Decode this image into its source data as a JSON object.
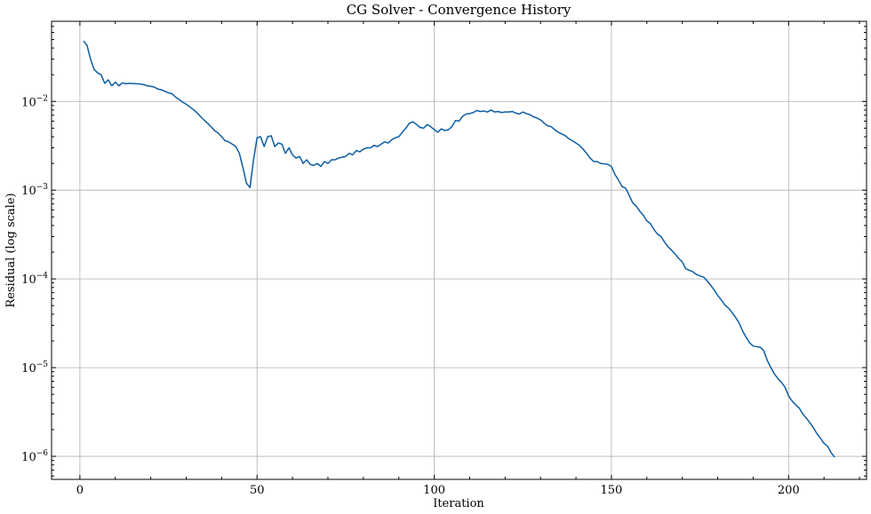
{
  "chart_data": {
    "type": "line",
    "title": "CG Solver - Convergence History",
    "xlabel": "Iteration",
    "ylabel": "Residual (log scale)",
    "xlim": [
      -8,
      222
    ],
    "ylim": [
      5.5e-07,
      0.08
    ],
    "yscale": "log",
    "grid": true,
    "xticks": [
      0,
      50,
      100,
      150,
      200
    ],
    "yticks": [
      {
        "value": 0.01,
        "mantissa": "10",
        "exp": "−2"
      },
      {
        "value": 0.001,
        "mantissa": "10",
        "exp": "−3"
      },
      {
        "value": 0.0001,
        "mantissa": "10",
        "exp": "−4"
      },
      {
        "value": 1e-05,
        "mantissa": "10",
        "exp": "−5"
      },
      {
        "value": 1e-06,
        "mantissa": "10",
        "exp": "−6"
      }
    ],
    "series": [
      {
        "color": "#0C5DA5",
        "points": [
          [
            1,
            0.048
          ],
          [
            2,
            0.043
          ],
          [
            3,
            0.03
          ],
          [
            4,
            0.023
          ],
          [
            5,
            0.021
          ],
          [
            6,
            0.02
          ],
          [
            7,
            0.016
          ],
          [
            8,
            0.0175
          ],
          [
            9,
            0.015
          ],
          [
            10,
            0.0165
          ],
          [
            11,
            0.015
          ],
          [
            12,
            0.0162
          ],
          [
            13,
            0.0158
          ],
          [
            14,
            0.016
          ],
          [
            15,
            0.0159
          ],
          [
            16,
            0.0158
          ],
          [
            17,
            0.0157
          ],
          [
            18,
            0.0155
          ],
          [
            19,
            0.015
          ],
          [
            20,
            0.0148
          ],
          [
            21,
            0.0145
          ],
          [
            22,
            0.0138
          ],
          [
            23,
            0.0135
          ],
          [
            24,
            0.013
          ],
          [
            25,
            0.0125
          ],
          [
            26,
            0.0122
          ],
          [
            27,
            0.0112
          ],
          [
            28,
            0.0105
          ],
          [
            29,
            0.0098
          ],
          [
            30,
            0.0093
          ],
          [
            31,
            0.0087
          ],
          [
            32,
            0.0081
          ],
          [
            33,
            0.0075
          ],
          [
            34,
            0.0068
          ],
          [
            35,
            0.0062
          ],
          [
            36,
            0.0057
          ],
          [
            37,
            0.0052
          ],
          [
            38,
            0.0047
          ],
          [
            39,
            0.0044
          ],
          [
            40,
            0.004
          ],
          [
            41,
            0.0036
          ],
          [
            42,
            0.0035
          ],
          [
            43,
            0.0033
          ],
          [
            44,
            0.0031
          ],
          [
            45,
            0.0026
          ],
          [
            46,
            0.0018
          ],
          [
            47,
            0.0012
          ],
          [
            48,
            0.00107
          ],
          [
            49,
            0.0022
          ],
          [
            50,
            0.0039
          ],
          [
            51,
            0.004
          ],
          [
            52,
            0.0031
          ],
          [
            53,
            0.004
          ],
          [
            54,
            0.0041
          ],
          [
            55,
            0.0031
          ],
          [
            56,
            0.0034
          ],
          [
            57,
            0.0033
          ],
          [
            58,
            0.0026
          ],
          [
            59,
            0.003
          ],
          [
            60,
            0.0025
          ],
          [
            61,
            0.0023
          ],
          [
            62,
            0.0024
          ],
          [
            63,
            0.002
          ],
          [
            64,
            0.0022
          ],
          [
            65,
            0.00195
          ],
          [
            66,
            0.0019
          ],
          [
            67,
            0.002
          ],
          [
            68,
            0.00185
          ],
          [
            69,
            0.0021
          ],
          [
            70,
            0.002
          ],
          [
            71,
            0.0022
          ],
          [
            72,
            0.0022
          ],
          [
            73,
            0.0023
          ],
          [
            74,
            0.00235
          ],
          [
            75,
            0.0024
          ],
          [
            76,
            0.0026
          ],
          [
            77,
            0.0025
          ],
          [
            78,
            0.0028
          ],
          [
            79,
            0.0027
          ],
          [
            80,
            0.0029
          ],
          [
            81,
            0.003
          ],
          [
            82,
            0.003
          ],
          [
            83,
            0.0032
          ],
          [
            84,
            0.0031
          ],
          [
            85,
            0.0033
          ],
          [
            86,
            0.0035
          ],
          [
            87,
            0.0034
          ],
          [
            88,
            0.0037
          ],
          [
            89,
            0.0039
          ],
          [
            90,
            0.004
          ],
          [
            91,
            0.0045
          ],
          [
            92,
            0.005
          ],
          [
            93,
            0.0057
          ],
          [
            94,
            0.0059
          ],
          [
            95,
            0.0055
          ],
          [
            96,
            0.0051
          ],
          [
            97,
            0.005
          ],
          [
            98,
            0.0055
          ],
          [
            99,
            0.0052
          ],
          [
            100,
            0.0048
          ],
          [
            101,
            0.0045
          ],
          [
            102,
            0.0049
          ],
          [
            103,
            0.0047
          ],
          [
            104,
            0.0048
          ],
          [
            105,
            0.0052
          ],
          [
            106,
            0.0061
          ],
          [
            107,
            0.006
          ],
          [
            108,
            0.0068
          ],
          [
            109,
            0.0072
          ],
          [
            110,
            0.0073
          ],
          [
            111,
            0.0075
          ],
          [
            112,
            0.0079
          ],
          [
            113,
            0.0077
          ],
          [
            114,
            0.0078
          ],
          [
            115,
            0.0076
          ],
          [
            116,
            0.008
          ],
          [
            117,
            0.0076
          ],
          [
            118,
            0.0077
          ],
          [
            119,
            0.0075
          ],
          [
            120,
            0.0076
          ],
          [
            121,
            0.0076
          ],
          [
            122,
            0.0077
          ],
          [
            123,
            0.0074
          ],
          [
            124,
            0.0072
          ],
          [
            125,
            0.0076
          ],
          [
            126,
            0.0073
          ],
          [
            127,
            0.0071
          ],
          [
            128,
            0.0067
          ],
          [
            129,
            0.0065
          ],
          [
            130,
            0.0062
          ],
          [
            131,
            0.0057
          ],
          [
            132,
            0.0053
          ],
          [
            133,
            0.0052
          ],
          [
            134,
            0.0048
          ],
          [
            135,
            0.0045
          ],
          [
            136,
            0.0043
          ],
          [
            137,
            0.0041
          ],
          [
            138,
            0.0038
          ],
          [
            139,
            0.0036
          ],
          [
            140,
            0.0034
          ],
          [
            141,
            0.0032
          ],
          [
            142,
            0.0029
          ],
          [
            143,
            0.0026
          ],
          [
            144,
            0.0023
          ],
          [
            145,
            0.0021
          ],
          [
            146,
            0.0021
          ],
          [
            147,
            0.002
          ],
          [
            148,
            0.00198
          ],
          [
            149,
            0.00195
          ],
          [
            150,
            0.00185
          ],
          [
            151,
            0.0015
          ],
          [
            152,
            0.0013
          ],
          [
            153,
            0.0011
          ],
          [
            154,
            0.00105
          ],
          [
            155,
            0.00088
          ],
          [
            156,
            0.00072
          ],
          [
            157,
            0.00066
          ],
          [
            158,
            0.00058
          ],
          [
            159,
            0.00052
          ],
          [
            160,
            0.00045
          ],
          [
            161,
            0.00042
          ],
          [
            162,
            0.00036
          ],
          [
            163,
            0.00032
          ],
          [
            164,
            0.0003
          ],
          [
            165,
            0.00026
          ],
          [
            166,
            0.00023
          ],
          [
            167,
            0.00021
          ],
          [
            168,
            0.00019
          ],
          [
            169,
            0.00017
          ],
          [
            170,
            0.000155
          ],
          [
            171,
            0.00013
          ],
          [
            172,
            0.000125
          ],
          [
            173,
            0.00012
          ],
          [
            174,
            0.000112
          ],
          [
            175,
            0.000108
          ],
          [
            176,
            0.000105
          ],
          [
            177,
            9.5e-05
          ],
          [
            178,
            8.5e-05
          ],
          [
            179,
            7.5e-05
          ],
          [
            180,
            6.5e-05
          ],
          [
            181,
            5.8e-05
          ],
          [
            182,
            5.1e-05
          ],
          [
            183,
            4.7e-05
          ],
          [
            184,
            4.2e-05
          ],
          [
            185,
            3.7e-05
          ],
          [
            186,
            3.2e-05
          ],
          [
            187,
            2.6e-05
          ],
          [
            188,
            2.2e-05
          ],
          [
            189,
            1.9e-05
          ],
          [
            190,
            1.75e-05
          ],
          [
            191,
            1.72e-05
          ],
          [
            192,
            1.7e-05
          ],
          [
            193,
            1.55e-05
          ],
          [
            194,
            1.2e-05
          ],
          [
            195,
            1e-05
          ],
          [
            196,
            8.5e-06
          ],
          [
            197,
            7.5e-06
          ],
          [
            198,
            6.8e-06
          ],
          [
            199,
            6e-06
          ],
          [
            200,
            4.8e-06
          ],
          [
            201,
            4.2e-06
          ],
          [
            202,
            3.8e-06
          ],
          [
            203,
            3.5e-06
          ],
          [
            204,
            3e-06
          ],
          [
            205,
            2.7e-06
          ],
          [
            206,
            2.4e-06
          ],
          [
            207,
            2.1e-06
          ],
          [
            208,
            1.8e-06
          ],
          [
            209,
            1.6e-06
          ],
          [
            210,
            1.4e-06
          ],
          [
            211,
            1.3e-06
          ],
          [
            212,
            1.1e-06
          ],
          [
            213,
            9.8e-07
          ]
        ]
      }
    ]
  }
}
